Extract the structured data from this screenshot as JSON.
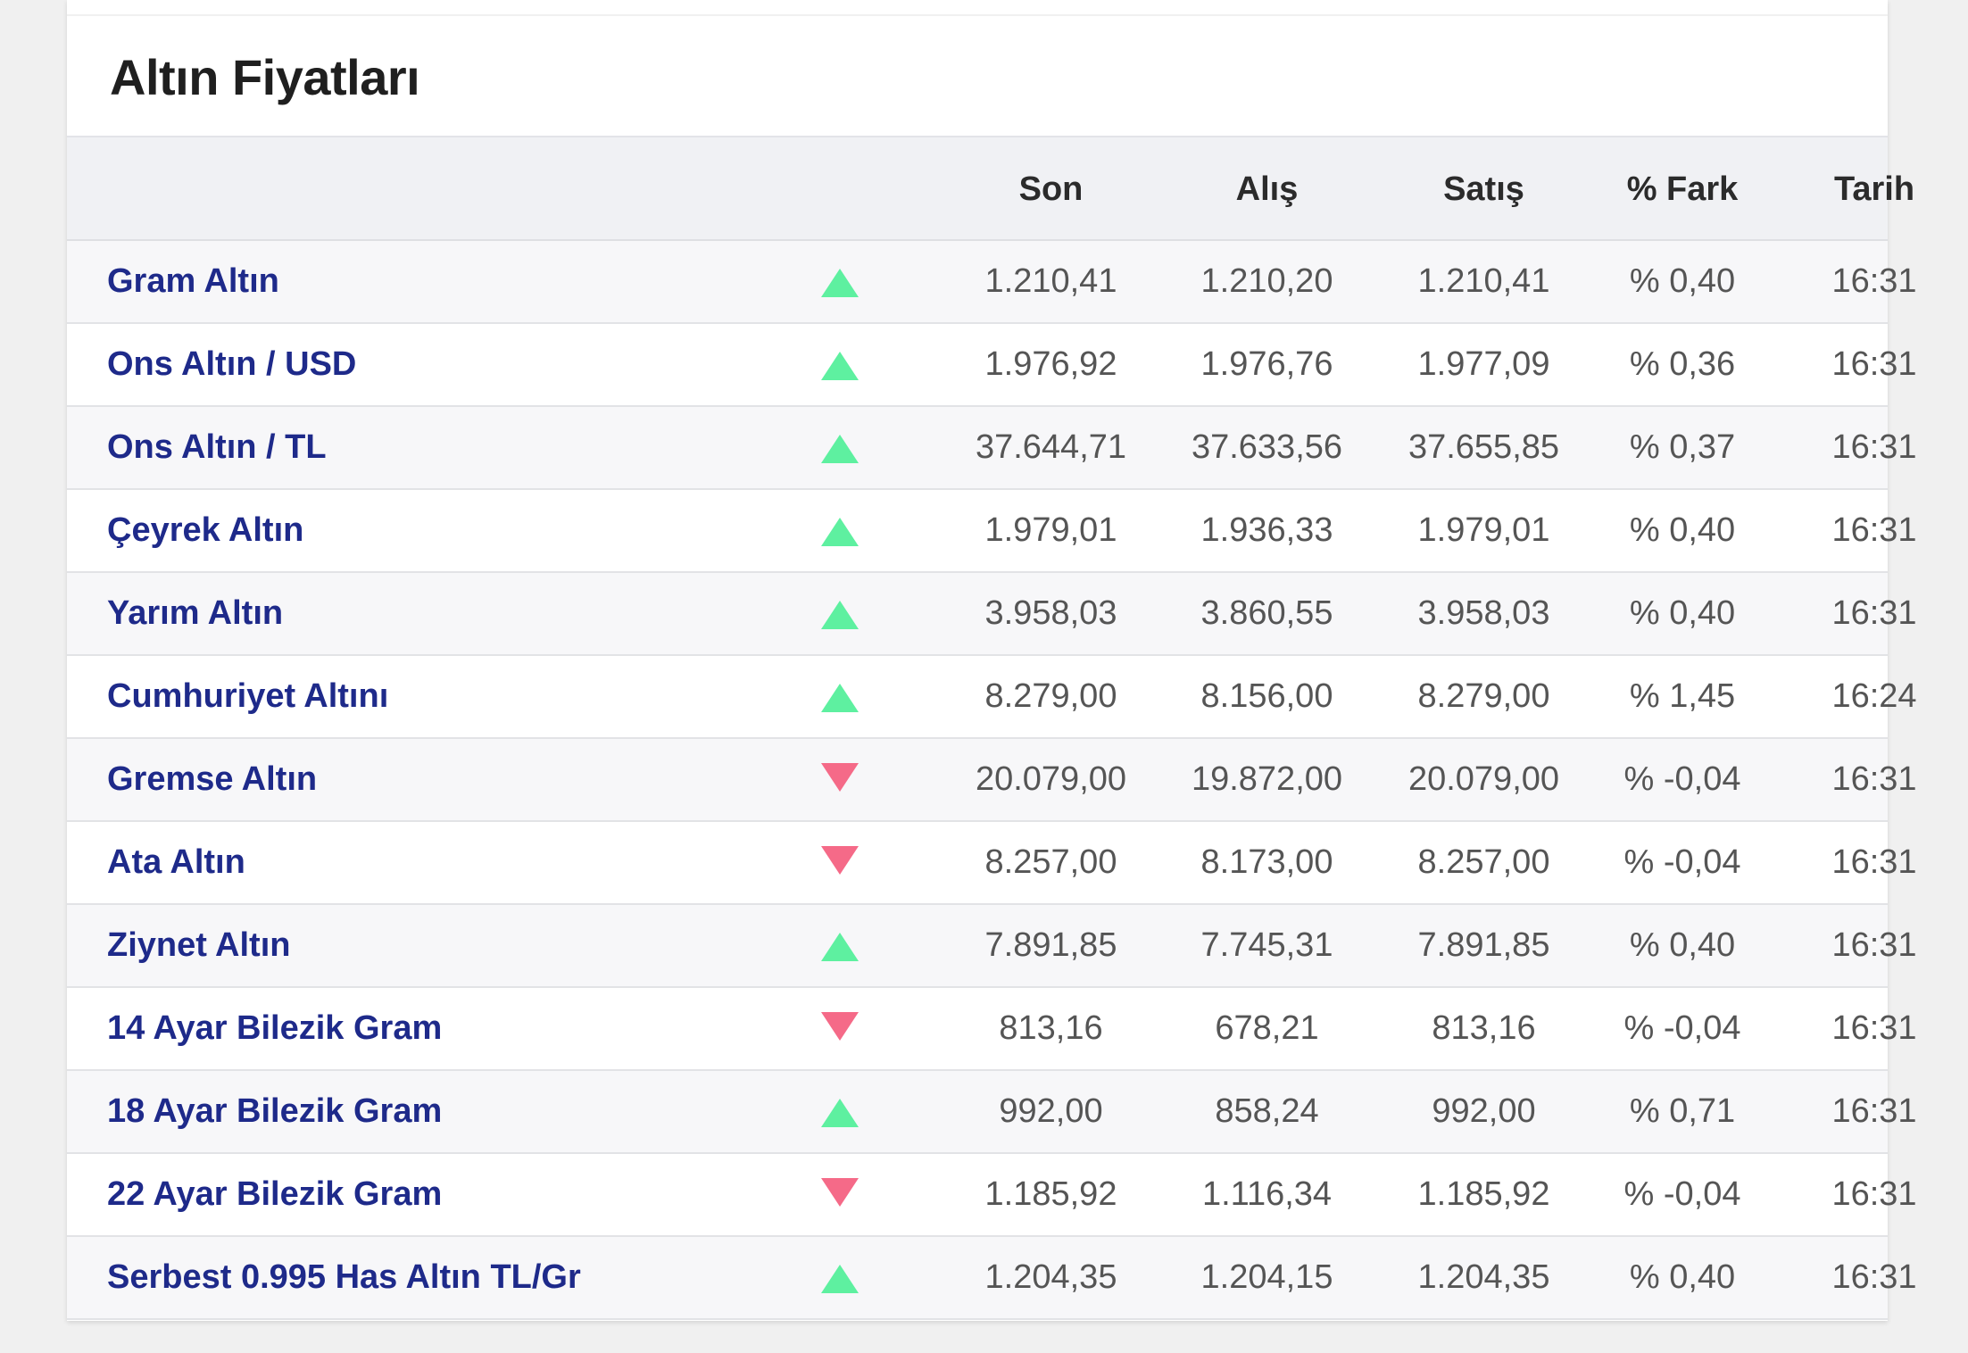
{
  "title": "Altın Fiyatları",
  "headers": {
    "son": "Son",
    "alis": "Alış",
    "satis": "Satış",
    "fark": "% Fark",
    "tarih": "Tarih"
  },
  "colors": {
    "up": "#5ef0a0",
    "down": "#f56a88",
    "name": "#1e2a8a"
  },
  "rows": [
    {
      "name": "Gram Altın",
      "direction": "up",
      "son": "1.210,41",
      "alis": "1.210,20",
      "satis": "1.210,41",
      "fark": "% 0,40",
      "tarih": "16:31"
    },
    {
      "name": "Ons Altın / USD",
      "direction": "up",
      "son": "1.976,92",
      "alis": "1.976,76",
      "satis": "1.977,09",
      "fark": "% 0,36",
      "tarih": "16:31"
    },
    {
      "name": "Ons Altın / TL",
      "direction": "up",
      "son": "37.644,71",
      "alis": "37.633,56",
      "satis": "37.655,85",
      "fark": "% 0,37",
      "tarih": "16:31"
    },
    {
      "name": "Çeyrek Altın",
      "direction": "up",
      "son": "1.979,01",
      "alis": "1.936,33",
      "satis": "1.979,01",
      "fark": "% 0,40",
      "tarih": "16:31"
    },
    {
      "name": "Yarım Altın",
      "direction": "up",
      "son": "3.958,03",
      "alis": "3.860,55",
      "satis": "3.958,03",
      "fark": "% 0,40",
      "tarih": "16:31"
    },
    {
      "name": "Cumhuriyet Altını",
      "direction": "up",
      "son": "8.279,00",
      "alis": "8.156,00",
      "satis": "8.279,00",
      "fark": "% 1,45",
      "tarih": "16:24"
    },
    {
      "name": "Gremse Altın",
      "direction": "down",
      "son": "20.079,00",
      "alis": "19.872,00",
      "satis": "20.079,00",
      "fark": "% -0,04",
      "tarih": "16:31"
    },
    {
      "name": "Ata Altın",
      "direction": "down",
      "son": "8.257,00",
      "alis": "8.173,00",
      "satis": "8.257,00",
      "fark": "% -0,04",
      "tarih": "16:31"
    },
    {
      "name": "Ziynet Altın",
      "direction": "up",
      "son": "7.891,85",
      "alis": "7.745,31",
      "satis": "7.891,85",
      "fark": "% 0,40",
      "tarih": "16:31"
    },
    {
      "name": "14 Ayar Bilezik Gram",
      "direction": "down",
      "son": "813,16",
      "alis": "678,21",
      "satis": "813,16",
      "fark": "% -0,04",
      "tarih": "16:31"
    },
    {
      "name": "18 Ayar Bilezik Gram",
      "direction": "up",
      "son": "992,00",
      "alis": "858,24",
      "satis": "992,00",
      "fark": "% 0,71",
      "tarih": "16:31"
    },
    {
      "name": "22 Ayar Bilezik Gram",
      "direction": "down",
      "son": "1.185,92",
      "alis": "1.116,34",
      "satis": "1.185,92",
      "fark": "% -0,04",
      "tarih": "16:31"
    },
    {
      "name": "Serbest 0.995 Has Altın TL/Gr",
      "direction": "up",
      "son": "1.204,35",
      "alis": "1.204,15",
      "satis": "1.204,35",
      "fark": "% 0,40",
      "tarih": "16:31"
    }
  ]
}
